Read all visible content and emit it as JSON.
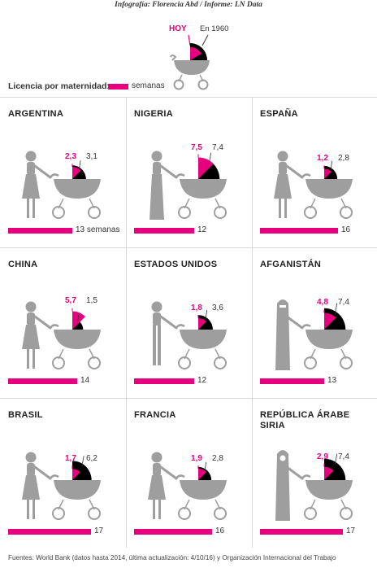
{
  "credit": "Infografía: Florencia Abd / Informe: LN Data",
  "legend": {
    "today_label": "HOY",
    "past_label": "En 1960",
    "licencia_label": "Licencia por maternidad:",
    "unit_label": "semanas"
  },
  "countries": [
    {
      "name": "ARGENTINA",
      "today": "2,3",
      "in1960": "3,1",
      "weeks": 13,
      "weeks_label": "13 semanas",
      "figure": "woman-dress"
    },
    {
      "name": "NIGERIA",
      "today": "7,5",
      "in1960": "7,4",
      "weeks": 12,
      "weeks_label": "12",
      "figure": "woman-robe"
    },
    {
      "name": "ESPAÑA",
      "today": "1,2",
      "in1960": "2,8",
      "weeks": 16,
      "weeks_label": "16",
      "figure": "woman-skirt"
    },
    {
      "name": "CHINA",
      "today": "5,7",
      "in1960": "1,5",
      "weeks": 14,
      "weeks_label": "14",
      "figure": "woman-dress"
    },
    {
      "name": "ESTADOS UNIDOS",
      "today": "1,8",
      "in1960": "3,6",
      "weeks": 12,
      "weeks_label": "12",
      "figure": "woman-pants"
    },
    {
      "name": "AFGANISTÁN",
      "today": "4,8",
      "in1960": "7,4",
      "weeks": 13,
      "weeks_label": "13",
      "figure": "woman-burqa"
    },
    {
      "name": "BRASIL",
      "today": "1,7",
      "in1960": "6,2",
      "weeks": 17,
      "weeks_label": "17",
      "figure": "woman-dress"
    },
    {
      "name": "FRANCIA",
      "today": "1,9",
      "in1960": "2,8",
      "weeks": 16,
      "weeks_label": "16",
      "figure": "woman-skirt"
    },
    {
      "name": "REPÚBLICA ÁRABE SIRIA",
      "today": "2,9",
      "in1960": "7,4",
      "weeks": 17,
      "weeks_label": "17",
      "figure": "woman-hijab"
    }
  ],
  "colors": {
    "accent": "#e6007e",
    "dark": "#000000",
    "figure": "#9e9e9e",
    "divider": "#d9d9d9"
  },
  "source": "Fuentes: World Bank (datos hasta 2014, última actualización: 4/10/16) y Organización Internacional del Trabajo"
}
